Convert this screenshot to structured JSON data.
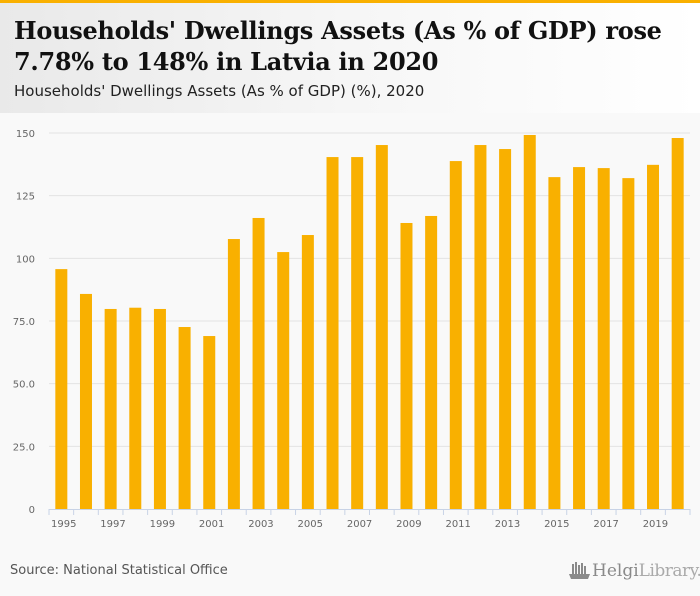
{
  "header": {
    "title": "Households' Dwellings Assets (As % of GDP) rose 7.78% to 148% in Latvia in 2020",
    "subtitle": "Households' Dwellings Assets (As % of GDP) (%), 2020"
  },
  "footer": {
    "source": "Source: National Statistical Office",
    "logo_brand": "Helgi",
    "logo_suffix": "Library."
  },
  "colors": {
    "accent": "#f9b000",
    "bar": "#f9b000",
    "grid": "#e3e3e3",
    "axis": "#c8d3e6",
    "tick_text": "#666666"
  },
  "chart_data": {
    "type": "bar",
    "title": "Households' Dwellings Assets (As % of GDP) rose 7.78% to 148% in Latvia in 2020",
    "subtitle": "Households' Dwellings Assets (As % of GDP) (%), 2020",
    "xlabel": "",
    "ylabel": "",
    "ylim": [
      0,
      150
    ],
    "yticks": [
      0,
      25,
      50,
      75,
      100,
      125,
      150
    ],
    "ytick_labels": [
      "0",
      "25.0",
      "50.0",
      "75.0",
      "100",
      "125",
      "150"
    ],
    "grid": true,
    "legend": "none",
    "categories": [
      "1995",
      "1996",
      "1997",
      "1998",
      "1999",
      "2000",
      "2001",
      "2002",
      "2003",
      "2004",
      "2005",
      "2006",
      "2007",
      "2008",
      "2009",
      "2010",
      "2011",
      "2012",
      "2013",
      "2014",
      "2015",
      "2016",
      "2017",
      "2018",
      "2019",
      "2020"
    ],
    "xtick_labels": [
      "1995",
      "1997",
      "1999",
      "2001",
      "2003",
      "2005",
      "2007",
      "2009",
      "2011",
      "2013",
      "2015",
      "2017",
      "2019"
    ],
    "series": [
      {
        "name": "Households' Dwellings Assets (As % of GDP)",
        "values": [
          95.7,
          85.8,
          79.8,
          80.3,
          79.8,
          72.6,
          69.0,
          107.7,
          116.1,
          102.5,
          109.3,
          140.4,
          140.4,
          145.2,
          114.1,
          116.9,
          138.8,
          145.2,
          143.6,
          149.2,
          132.4,
          136.4,
          136.0,
          132.0,
          137.3,
          148.0
        ]
      }
    ]
  }
}
